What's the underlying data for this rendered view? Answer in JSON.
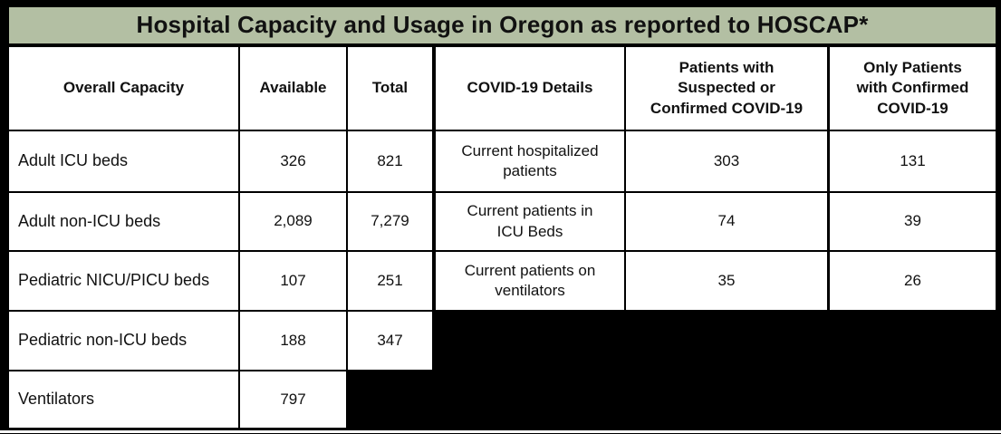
{
  "title": "Hospital Capacity and Usage in Oregon as reported to HOSCAP*",
  "colors": {
    "title_bg": "#b3bfa3",
    "border": "#000000",
    "redaction": "#000000",
    "cell_bg": "#ffffff",
    "text": "#111111"
  },
  "capacity_table": {
    "headers": [
      "Overall Capacity",
      "Available",
      "Total"
    ],
    "rows": [
      {
        "label": "Adult ICU beds",
        "available": "326",
        "total": "821"
      },
      {
        "label": "Adult non-ICU beds",
        "available": "2,089",
        "total": "7,279"
      },
      {
        "label": "Pediatric NICU/PICU beds",
        "available": "107",
        "total": "251"
      },
      {
        "label": "Pediatric non-ICU beds",
        "available": "188",
        "total": "347"
      },
      {
        "label": "Ventilators",
        "available": "797"
      }
    ]
  },
  "covid_table": {
    "headers": [
      "COVID-19 Details",
      "Patients with\nSuspected or\nConfirmed COVID-19",
      "Only Patients\nwith Confirmed\nCOVID-19"
    ],
    "rows": [
      {
        "label": "Current hospitalized\npatients",
        "suspected_or_confirmed": "303",
        "confirmed_only": "131"
      },
      {
        "label": "Current patients in\nICU Beds",
        "suspected_or_confirmed": "74",
        "confirmed_only": "39"
      },
      {
        "label": "Current patients on\nventilators",
        "suspected_or_confirmed": "35",
        "confirmed_only": "26"
      }
    ]
  }
}
